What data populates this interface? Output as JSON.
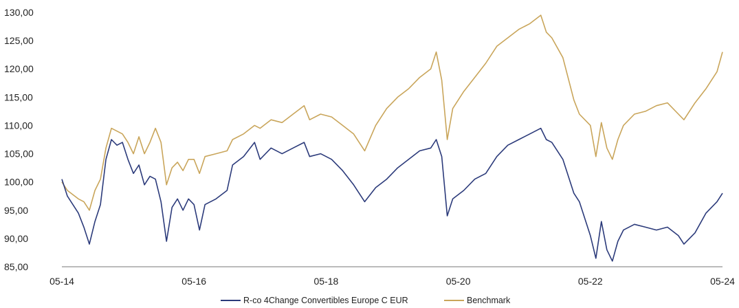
{
  "chart_data": {
    "type": "line",
    "title": "",
    "xlabel": "",
    "ylabel": "",
    "ylim": [
      85,
      130
    ],
    "y_ticks": [
      "85,00",
      "90,00",
      "95,00",
      "100,00",
      "105,00",
      "110,00",
      "115,00",
      "120,00",
      "125,00",
      "130,00"
    ],
    "x_ticks": [
      "05-14",
      "05-16",
      "05-18",
      "05-20",
      "05-22",
      "05-24"
    ],
    "grid": false,
    "legend_position": "bottom",
    "series": [
      {
        "name": "R-co 4Change Convertibles Europe C EUR",
        "color": "#2b3a7a",
        "x": [
          "2014-05",
          "2014-06",
          "2014-08",
          "2014-09",
          "2014-10",
          "2014-11",
          "2014-12",
          "2015-01",
          "2015-02",
          "2015-03",
          "2015-04",
          "2015-05",
          "2015-06",
          "2015-07",
          "2015-08",
          "2015-09",
          "2015-10",
          "2015-11",
          "2015-12",
          "2016-01",
          "2016-02",
          "2016-03",
          "2016-04",
          "2016-05",
          "2016-06",
          "2016-07",
          "2016-09",
          "2016-11",
          "2016-12",
          "2017-02",
          "2017-04",
          "2017-05",
          "2017-07",
          "2017-09",
          "2017-11",
          "2018-01",
          "2018-02",
          "2018-04",
          "2018-06",
          "2018-08",
          "2018-10",
          "2018-12",
          "2019-02",
          "2019-04",
          "2019-06",
          "2019-08",
          "2019-10",
          "2019-12",
          "2020-01",
          "2020-02",
          "2020-03",
          "2020-04",
          "2020-06",
          "2020-08",
          "2020-10",
          "2020-12",
          "2021-02",
          "2021-04",
          "2021-06",
          "2021-08",
          "2021-09",
          "2021-10",
          "2021-12",
          "2022-02",
          "2022-03",
          "2022-05",
          "2022-06",
          "2022-07",
          "2022-08",
          "2022-09",
          "2022-10",
          "2022-11",
          "2023-01",
          "2023-03",
          "2023-05",
          "2023-07",
          "2023-09",
          "2023-10",
          "2023-12",
          "2024-02",
          "2024-04",
          "2024-05"
        ],
        "values": [
          100.5,
          97.5,
          94.5,
          92.0,
          89.0,
          93.0,
          96.0,
          104.0,
          107.5,
          106.5,
          107.0,
          104.0,
          101.5,
          103.0,
          99.5,
          101.0,
          100.5,
          96.5,
          89.5,
          95.5,
          97.0,
          95.0,
          97.0,
          96.0,
          91.5,
          96.0,
          97.0,
          98.5,
          103.0,
          104.5,
          107.0,
          104.0,
          106.0,
          105.0,
          106.0,
          107.0,
          104.5,
          105.0,
          104.0,
          102.0,
          99.5,
          96.5,
          99.0,
          100.5,
          102.5,
          104.0,
          105.5,
          106.0,
          107.5,
          104.5,
          94.0,
          97.0,
          98.5,
          100.5,
          101.5,
          104.5,
          106.5,
          107.5,
          108.5,
          109.5,
          107.5,
          107.0,
          104.0,
          98.0,
          96.5,
          90.5,
          86.5,
          93.0,
          88.0,
          86.0,
          89.5,
          91.5,
          92.5,
          92.0,
          91.5,
          92.0,
          90.5,
          89.0,
          91.0,
          94.5,
          96.5,
          98.0
        ]
      },
      {
        "name": "Benchmark",
        "color": "#c9a55a",
        "x": [
          "2014-05",
          "2014-06",
          "2014-08",
          "2014-09",
          "2014-10",
          "2014-11",
          "2014-12",
          "2015-01",
          "2015-02",
          "2015-03",
          "2015-04",
          "2015-05",
          "2015-06",
          "2015-07",
          "2015-08",
          "2015-09",
          "2015-10",
          "2015-11",
          "2015-12",
          "2016-01",
          "2016-02",
          "2016-03",
          "2016-04",
          "2016-05",
          "2016-06",
          "2016-07",
          "2016-09",
          "2016-11",
          "2016-12",
          "2017-02",
          "2017-04",
          "2017-05",
          "2017-07",
          "2017-09",
          "2017-11",
          "2018-01",
          "2018-02",
          "2018-04",
          "2018-06",
          "2018-08",
          "2018-10",
          "2018-12",
          "2019-02",
          "2019-04",
          "2019-06",
          "2019-08",
          "2019-10",
          "2019-12",
          "2020-01",
          "2020-02",
          "2020-03",
          "2020-04",
          "2020-06",
          "2020-08",
          "2020-10",
          "2020-12",
          "2021-02",
          "2021-04",
          "2021-06",
          "2021-08",
          "2021-09",
          "2021-10",
          "2021-12",
          "2022-02",
          "2022-03",
          "2022-05",
          "2022-06",
          "2022-07",
          "2022-08",
          "2022-09",
          "2022-10",
          "2022-11",
          "2023-01",
          "2023-03",
          "2023-05",
          "2023-07",
          "2023-09",
          "2023-10",
          "2023-12",
          "2024-02",
          "2024-04",
          "2024-05"
        ],
        "values": [
          100.0,
          98.5,
          97.0,
          96.5,
          95.0,
          98.5,
          100.5,
          106.0,
          109.5,
          109.0,
          108.5,
          107.0,
          105.0,
          108.0,
          105.0,
          107.0,
          109.5,
          107.0,
          99.5,
          102.5,
          103.5,
          102.0,
          104.0,
          104.0,
          101.5,
          104.5,
          105.0,
          105.5,
          107.5,
          108.5,
          110.0,
          109.5,
          111.0,
          110.5,
          112.0,
          113.5,
          111.0,
          112.0,
          111.5,
          110.0,
          108.5,
          105.5,
          110.0,
          113.0,
          115.0,
          116.5,
          118.5,
          120.0,
          123.0,
          118.0,
          107.5,
          113.0,
          116.0,
          118.5,
          121.0,
          124.0,
          125.5,
          127.0,
          128.0,
          129.5,
          126.5,
          125.5,
          122.0,
          114.5,
          112.0,
          110.0,
          104.5,
          110.5,
          106.0,
          104.0,
          107.5,
          110.0,
          112.0,
          112.5,
          113.5,
          114.0,
          112.0,
          111.0,
          114.0,
          116.5,
          119.5,
          123.0
        ]
      }
    ]
  }
}
